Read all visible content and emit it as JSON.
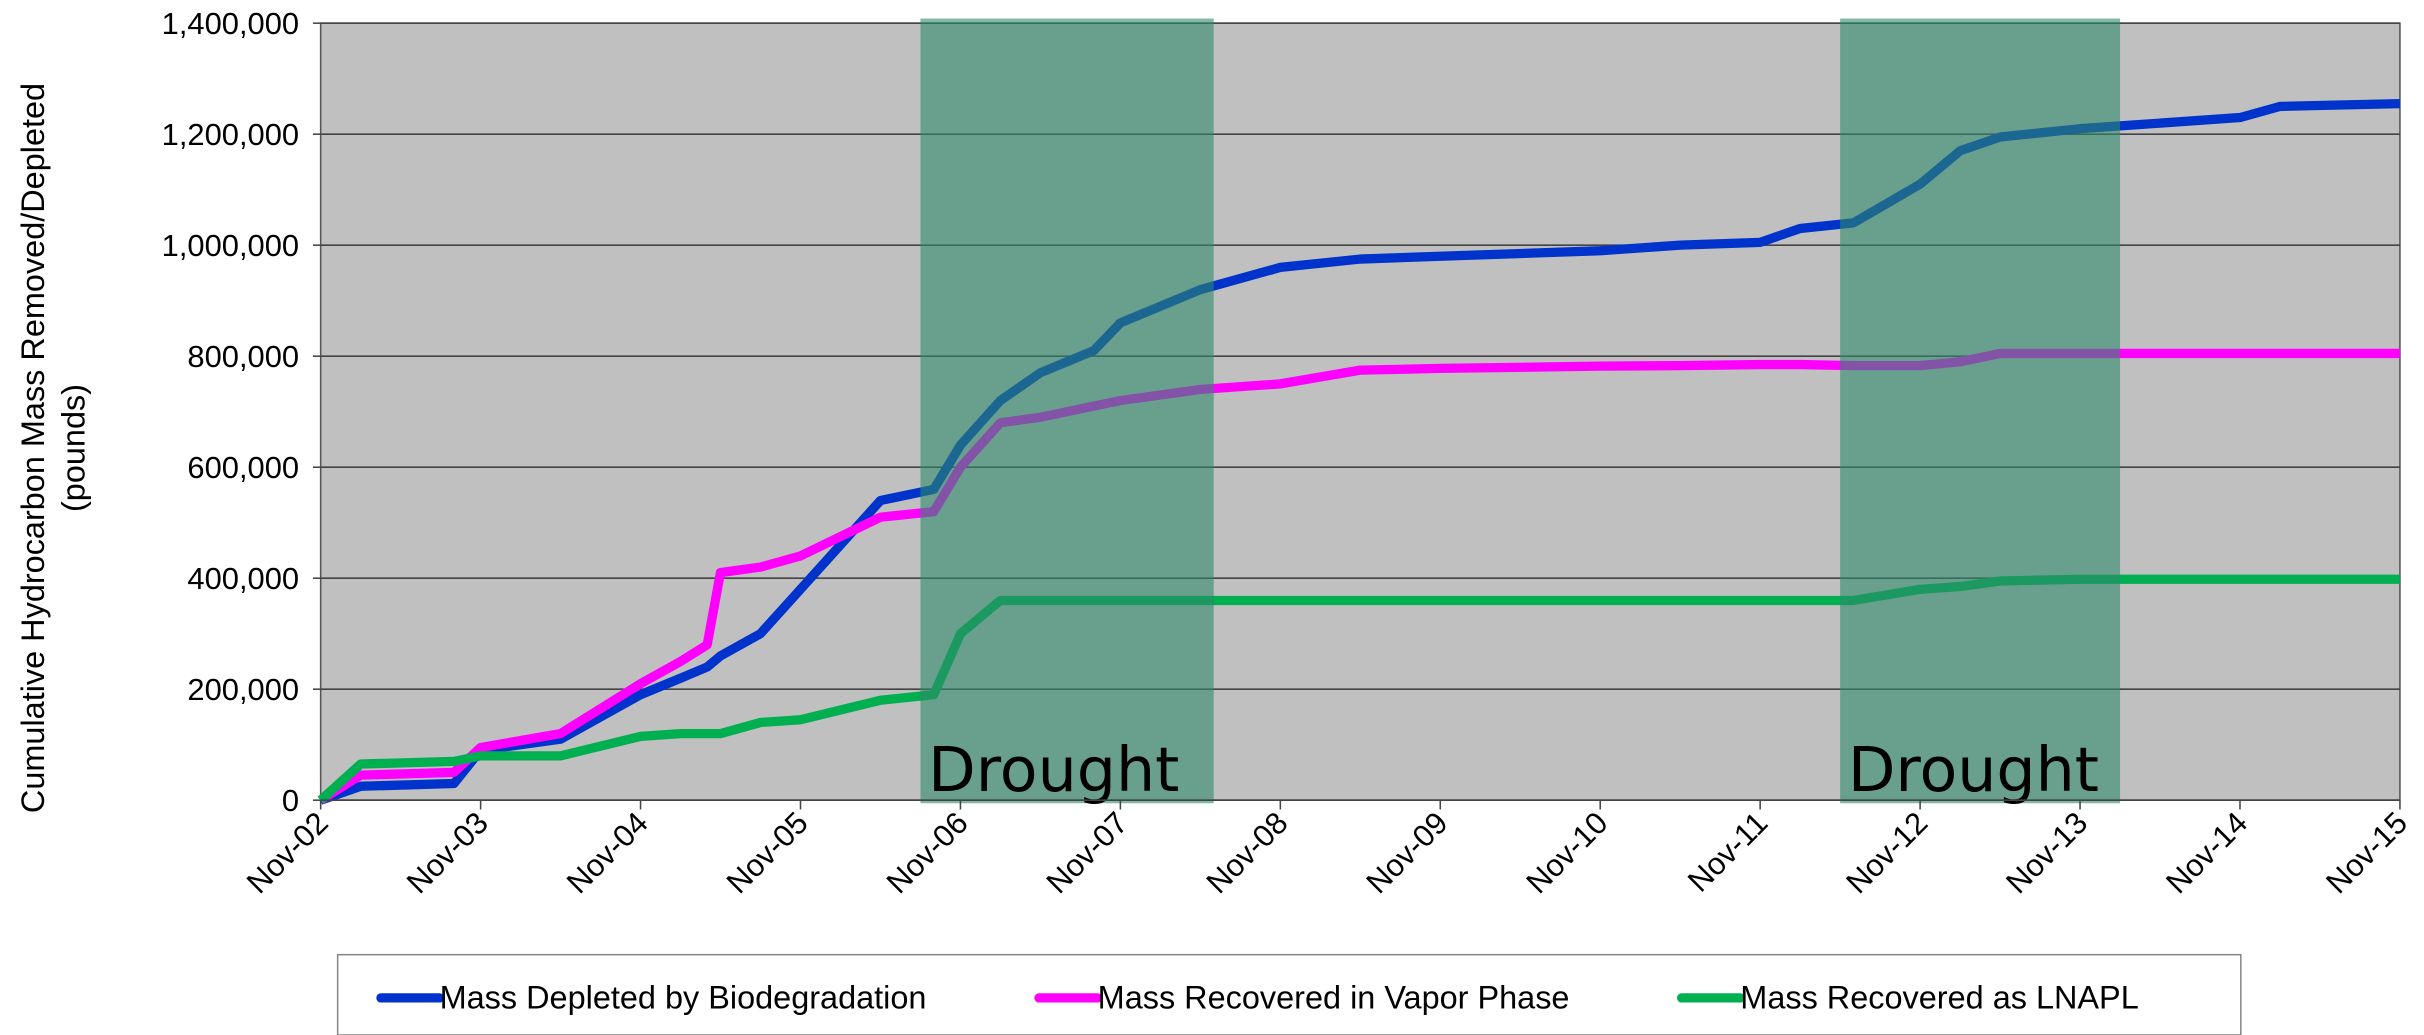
{
  "chart_data": {
    "type": "line",
    "y_label": [
      "Cumulative Hydrocarbon Mass Removed/Depleted",
      "(pounds)"
    ],
    "x": [
      "2002-11",
      "2003-02",
      "2003-09",
      "2003-11",
      "2004-05",
      "2004-11",
      "2005-02",
      "2005-04",
      "2005-05",
      "2005-08",
      "2005-11",
      "2006-05",
      "2006-09",
      "2006-11",
      "2007-02",
      "2007-05",
      "2007-09",
      "2007-11",
      "2008-05",
      "2008-11",
      "2009-05",
      "2009-11",
      "2010-11",
      "2011-05",
      "2011-11",
      "2012-02",
      "2012-06",
      "2012-11",
      "2013-02",
      "2013-05",
      "2013-11",
      "2014-02",
      "2014-11",
      "2015-02",
      "2015-11"
    ],
    "series": [
      {
        "name": "Mass Depleted by Biodegradation",
        "color": "#0033cc",
        "values": [
          0,
          25000,
          30000,
          90000,
          110000,
          190000,
          220000,
          240000,
          260000,
          300000,
          380000,
          540000,
          560000,
          640000,
          720000,
          770000,
          810000,
          860000,
          920000,
          960000,
          975000,
          980000,
          990000,
          1000000,
          1005000,
          1030000,
          1040000,
          1110000,
          1170000,
          1195000,
          1210000,
          1215000,
          1230000,
          1250000,
          1255000
        ]
      },
      {
        "name": "Mass Recovered in Vapor Phase",
        "color": "#ff00ff",
        "values": [
          0,
          45000,
          50000,
          95000,
          120000,
          210000,
          250000,
          280000,
          410000,
          420000,
          440000,
          510000,
          520000,
          600000,
          680000,
          690000,
          710000,
          720000,
          740000,
          750000,
          775000,
          778000,
          782000,
          783000,
          785000,
          785000,
          783000,
          783000,
          790000,
          805000,
          805000,
          805000,
          805000,
          805000,
          805000
        ]
      },
      {
        "name": "Mass Recovered as LNAPL",
        "color": "#00b050",
        "values": [
          0,
          65000,
          70000,
          80000,
          80000,
          115000,
          120000,
          120000,
          120000,
          140000,
          145000,
          180000,
          190000,
          300000,
          360000,
          360000,
          360000,
          360000,
          360000,
          360000,
          360000,
          360000,
          360000,
          360000,
          360000,
          360000,
          360000,
          380000,
          385000,
          395000,
          398000,
          398000,
          398000,
          398000,
          398000
        ]
      }
    ],
    "xlim": [
      "2002-11",
      "2015-11"
    ],
    "xticks": [
      {
        "value": "2002-11",
        "label": "Nov-02"
      },
      {
        "value": "2003-11",
        "label": "Nov-03"
      },
      {
        "value": "2004-11",
        "label": "Nov-04"
      },
      {
        "value": "2005-11",
        "label": "Nov-05"
      },
      {
        "value": "2006-11",
        "label": "Nov-06"
      },
      {
        "value": "2007-11",
        "label": "Nov-07"
      },
      {
        "value": "2008-11",
        "label": "Nov-08"
      },
      {
        "value": "2009-11",
        "label": "Nov-09"
      },
      {
        "value": "2010-11",
        "label": "Nov-10"
      },
      {
        "value": "2011-11",
        "label": "Nov-11"
      },
      {
        "value": "2012-11",
        "label": "Nov-12"
      },
      {
        "value": "2013-11",
        "label": "Nov-13"
      },
      {
        "value": "2014-11",
        "label": "Nov-14"
      },
      {
        "value": "2015-11",
        "label": "Nov-15"
      }
    ],
    "ylim": [
      0,
      1400000
    ],
    "yticks": [
      0,
      {
        "value": 200000,
        "label": "200,000"
      },
      {
        "value": 400000,
        "label": "400,000"
      },
      {
        "value": 600000,
        "label": "600,000"
      },
      {
        "value": 800000,
        "label": "800,000"
      },
      {
        "value": 1000000,
        "label": "1,000,000"
      },
      {
        "value": 1200000,
        "label": "1,200,000"
      },
      {
        "value": 1400000,
        "label": "1,400,000"
      }
    ],
    "grid": true,
    "legend": "bottom",
    "shaded_regions": [
      {
        "start": "2006-08",
        "end": "2008-06",
        "label": "Drought",
        "color": "#2e8b6a"
      },
      {
        "start": "2012-05",
        "end": "2014-02",
        "label": "Drought",
        "color": "#2e8b6a"
      }
    ]
  }
}
